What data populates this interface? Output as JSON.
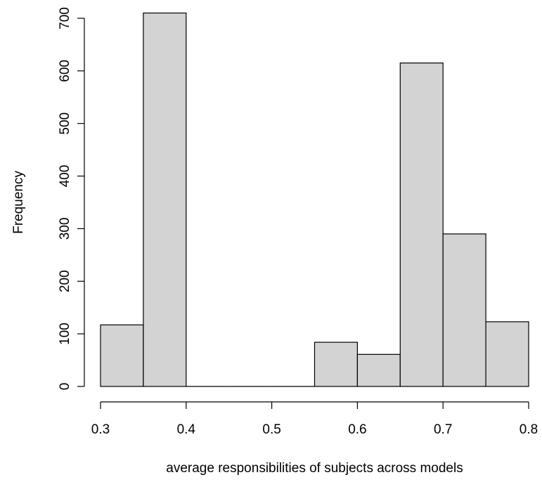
{
  "chart_data": {
    "type": "bar",
    "title": "",
    "xlabel": "average responsibilities of subjects across models",
    "ylabel": "Frequency",
    "bins": [
      {
        "from": 0.3,
        "to": 0.35,
        "count": 117
      },
      {
        "from": 0.35,
        "to": 0.4,
        "count": 710
      },
      {
        "from": 0.4,
        "to": 0.45,
        "count": 0
      },
      {
        "from": 0.45,
        "to": 0.5,
        "count": 0
      },
      {
        "from": 0.5,
        "to": 0.55,
        "count": 0
      },
      {
        "from": 0.55,
        "to": 0.6,
        "count": 84
      },
      {
        "from": 0.6,
        "to": 0.65,
        "count": 61
      },
      {
        "from": 0.65,
        "to": 0.7,
        "count": 615
      },
      {
        "from": 0.7,
        "to": 0.75,
        "count": 290
      },
      {
        "from": 0.75,
        "to": 0.8,
        "count": 123
      }
    ],
    "xlim": [
      0.3,
      0.8
    ],
    "ylim": [
      0,
      700
    ],
    "xticks": [
      "0.3",
      "0.4",
      "0.5",
      "0.6",
      "0.7",
      "0.8"
    ],
    "yticks": [
      "0",
      "100",
      "200",
      "300",
      "400",
      "500",
      "600",
      "700"
    ],
    "grid": false,
    "legend": "none",
    "colors": {
      "bar_fill": "#d3d3d3",
      "bar_stroke": "#000000"
    }
  }
}
